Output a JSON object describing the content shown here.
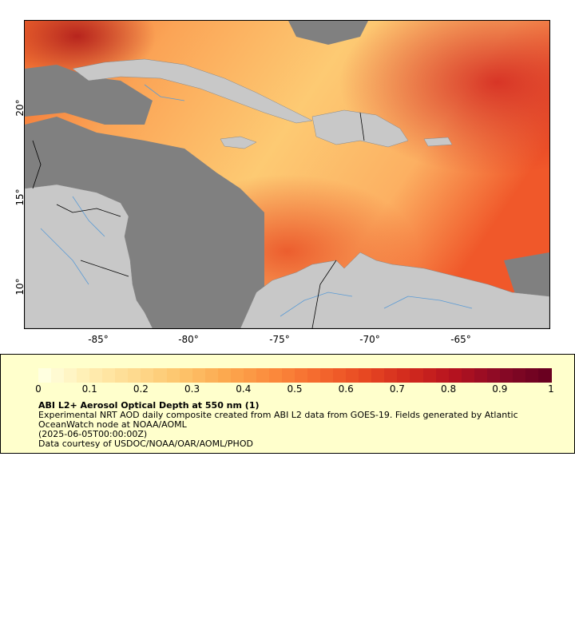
{
  "map": {
    "lat_labels": [
      "20°",
      "15°",
      "10°"
    ],
    "lon_labels": [
      "-85°",
      "-80°",
      "-75°",
      "-70°",
      "-65°"
    ],
    "colors": {
      "land": "#c8c8c8",
      "nodata": "#808080",
      "river": "#5b9bd5",
      "border": "#000000"
    }
  },
  "legend": {
    "ticks": [
      "0",
      "0.1",
      "0.2",
      "0.3",
      "0.4",
      "0.5",
      "0.6",
      "0.7",
      "0.8",
      "0.9",
      "1"
    ],
    "colors": [
      "#ffffe0",
      "#ffedb0",
      "#fed98e",
      "#fdc46b",
      "#fca84e",
      "#fb8a3c",
      "#f56a2e",
      "#e84a22",
      "#d22a1e",
      "#b5121f",
      "#8a0a26",
      "#6a0020"
    ],
    "title": "ABI L2+ Aerosol Optical Depth at 550 nm (1)",
    "line1": "Experimental NRT AOD daily composite created from ABI L2 data from GOES-19. Fields generated by Atlantic",
    "line2": "OceanWatch node at NOAA/AOML",
    "line3": "(2025-06-05T00:00:00Z)",
    "line4": "Data courtesy of USDOC/NOAA/OAR/AOML/PHOD"
  }
}
